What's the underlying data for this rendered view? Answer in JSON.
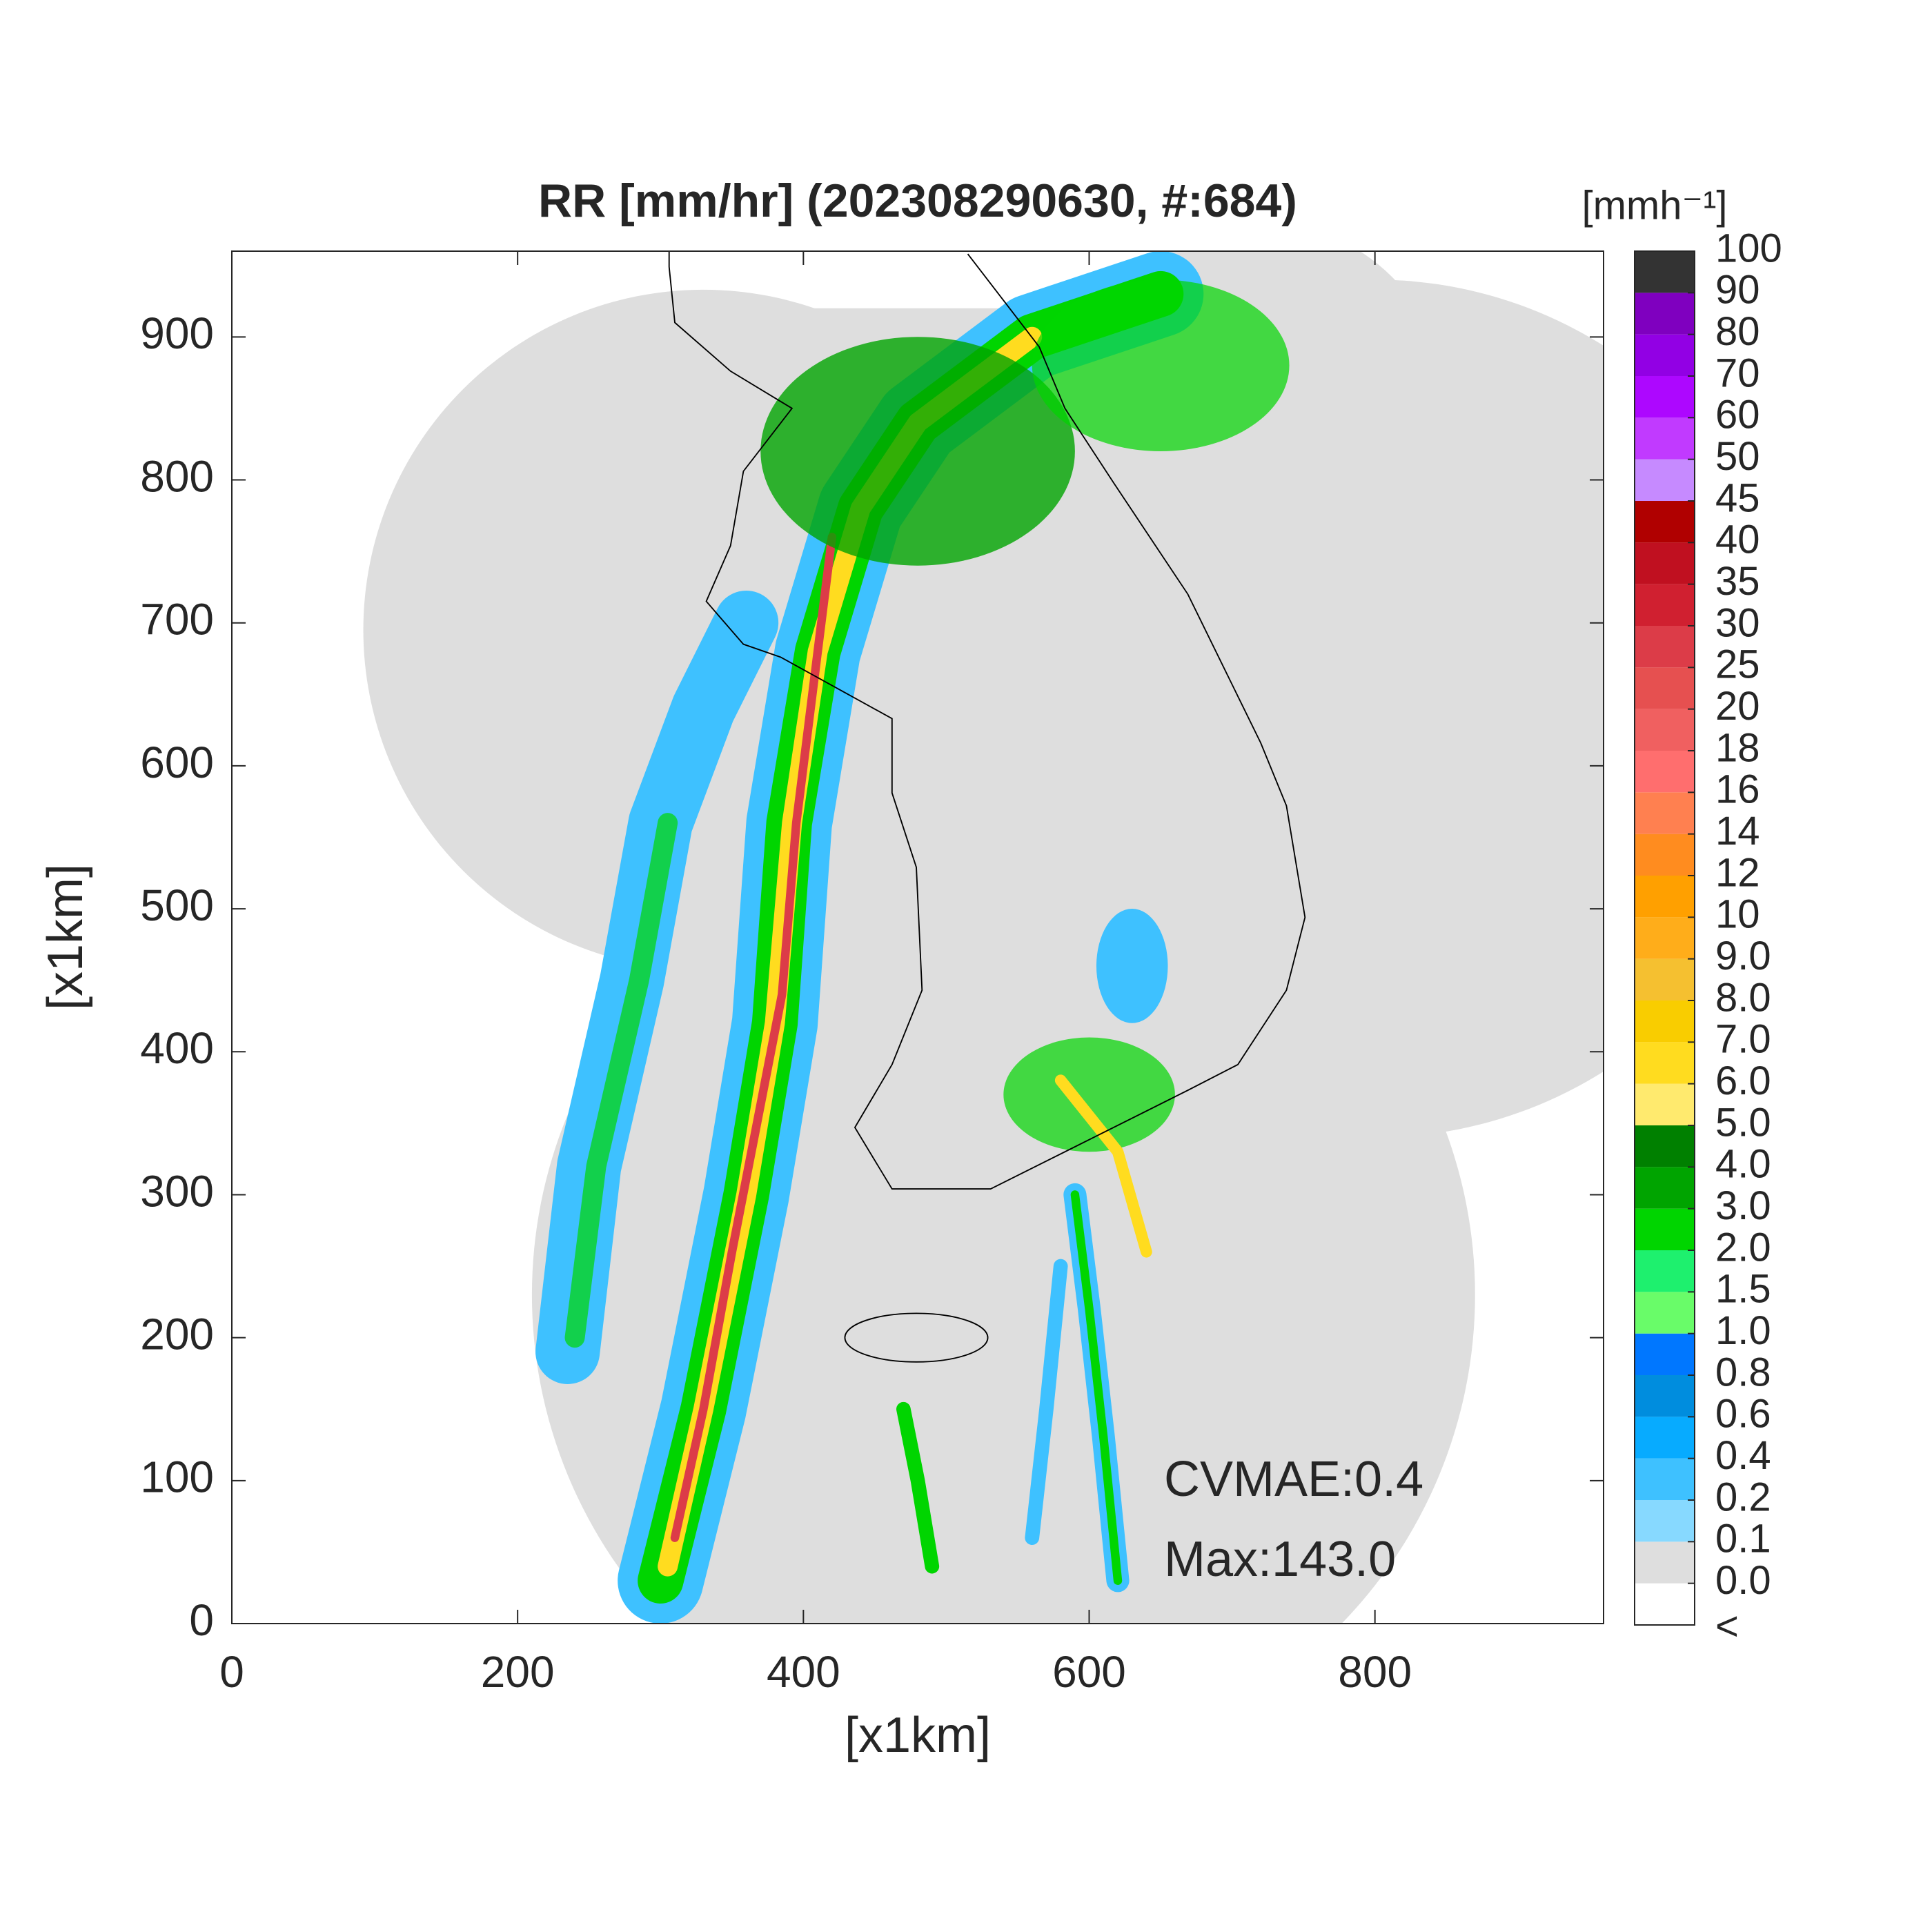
{
  "chart_data": {
    "type": "heatmap",
    "title": "RR [mm/hr] (202308290630, #:684)",
    "xlabel": "[x1km]",
    "ylabel": "[x1km]",
    "xlim": [
      0,
      960
    ],
    "ylim": [
      0,
      960
    ],
    "xticks": [
      0,
      200,
      400,
      600,
      800
    ],
    "yticks": [
      0,
      100,
      200,
      300,
      400,
      500,
      600,
      700,
      800,
      900
    ],
    "colorbar": {
      "label": "[mmh⁻¹]",
      "below_label": "<",
      "levels": [
        {
          "value": 0,
          "label": "0.0"
        },
        0.1,
        0.2,
        0.4,
        0.6,
        0.8,
        {
          "value": 1,
          "label": "1.0"
        },
        1.5,
        {
          "value": 2,
          "label": "2.0"
        },
        {
          "value": 3,
          "label": "3.0"
        },
        {
          "value": 4,
          "label": "4.0"
        },
        {
          "value": 5,
          "label": "5.0"
        },
        {
          "value": 6,
          "label": "6.0"
        },
        {
          "value": 7,
          "label": "7.0"
        },
        {
          "value": 8,
          "label": "8.0"
        },
        {
          "value": 9,
          "label": "9.0"
        },
        10,
        12,
        14,
        16,
        18,
        20,
        25,
        30,
        35,
        40,
        45,
        50,
        60,
        70,
        80,
        90,
        100
      ],
      "colors": [
        "#ffffff",
        "#dedede",
        "#87d9ff",
        "#3ec1ff",
        "#07abff",
        "#008dde",
        "#0077ff",
        "#69fc69",
        "#1ef06e",
        "#00d500",
        "#00a400",
        "#008000",
        "#ffea6e",
        "#ffdc1f",
        "#f9cd00",
        "#f5c030",
        "#ffad1a",
        "#ffa000",
        "#ff8c1f",
        "#ff8050",
        "#ff6e6e",
        "#f06060",
        "#e65050",
        "#dc3c48",
        "#d02030",
        "#c01020",
        "#b00000",
        "#c68aff",
        "#c13aff",
        "#ad07ff",
        "#9200e4",
        "#7f00bf",
        "#333333"
      ]
    },
    "annotations": [
      "CVMAE:0.4",
      "Max:143.0"
    ]
  }
}
